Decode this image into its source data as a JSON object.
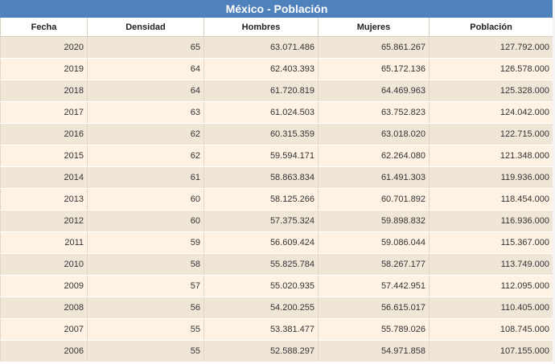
{
  "table": {
    "title": "México - Población",
    "columns": [
      "Fecha",
      "Densidad",
      "Hombres",
      "Mujeres",
      "Población"
    ],
    "rows": [
      [
        "2020",
        "65",
        "63.071.486",
        "65.861.267",
        "127.792.000"
      ],
      [
        "2019",
        "64",
        "62.403.393",
        "65.172.136",
        "126.578.000"
      ],
      [
        "2018",
        "64",
        "61.720.819",
        "64.469.963",
        "125.328.000"
      ],
      [
        "2017",
        "63",
        "61.024.503",
        "63.752.823",
        "124.042.000"
      ],
      [
        "2016",
        "62",
        "60.315.359",
        "63.018.020",
        "122.715.000"
      ],
      [
        "2015",
        "62",
        "59.594.171",
        "62.264.080",
        "121.348.000"
      ],
      [
        "2014",
        "61",
        "58.863.834",
        "61.491.303",
        "119.936.000"
      ],
      [
        "2013",
        "60",
        "58.125.266",
        "60.701.892",
        "118.454.000"
      ],
      [
        "2012",
        "60",
        "57.375.324",
        "59.898.832",
        "116.936.000"
      ],
      [
        "2011",
        "59",
        "56.609.424",
        "59.086.044",
        "115.367.000"
      ],
      [
        "2010",
        "58",
        "55.825.784",
        "58.267.177",
        "113.749.000"
      ],
      [
        "2009",
        "57",
        "55.020.935",
        "57.442.951",
        "112.095.000"
      ],
      [
        "2008",
        "56",
        "54.200.255",
        "56.615.017",
        "110.405.000"
      ],
      [
        "2007",
        "55",
        "53.381.477",
        "55.789.026",
        "108.745.000"
      ],
      [
        "2006",
        "55",
        "52.588.297",
        "54.971.858",
        "107.155.000"
      ]
    ]
  },
  "colors": {
    "title_bg": "#4f81bd",
    "row_even_bg": "#f0e6d8",
    "row_odd_bg": "#fdf2e3"
  }
}
